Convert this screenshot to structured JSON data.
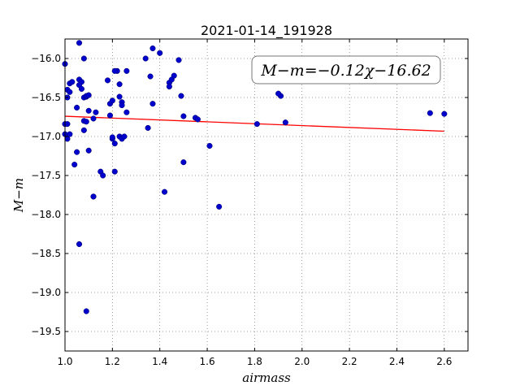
{
  "chart_data": {
    "type": "scatter",
    "title": "2021-01-14_191928",
    "xlabel": "airmass",
    "ylabel": "M−m",
    "annotation": "M−m=−0.12χ−16.62",
    "xlim": [
      1.0,
      2.7
    ],
    "ylim": [
      -19.75,
      -15.75
    ],
    "y_inverted": true,
    "grid": true,
    "x_ticks": [
      "1.0",
      "1.2",
      "1.4",
      "1.6",
      "1.8",
      "2.0",
      "2.2",
      "2.4",
      "2.6"
    ],
    "x_tick_values": [
      1.0,
      1.2,
      1.4,
      1.6,
      1.8,
      2.0,
      2.2,
      2.4,
      2.6
    ],
    "y_ticks": [
      "−16.0",
      "−16.5",
      "−17.0",
      "−17.5",
      "−18.0",
      "−18.5",
      "−19.0",
      "−19.5"
    ],
    "y_tick_values": [
      -16.0,
      -16.5,
      -17.0,
      -17.5,
      -18.0,
      -18.5,
      -19.0,
      -19.5
    ],
    "fit_line": {
      "slope": -0.12,
      "intercept": -16.62,
      "x_range": [
        1.0,
        2.6
      ],
      "color": "#ff0000"
    },
    "marker_color": "#0000cc",
    "series": [
      {
        "x": [
          1.0,
          1.01,
          1.02,
          1.01,
          1.0,
          1.01,
          1.0,
          1.01,
          1.02,
          1.02,
          1.03,
          1.04,
          1.05,
          1.05,
          1.06,
          1.06,
          1.07,
          1.06,
          1.07,
          1.08,
          1.08,
          1.09,
          1.09,
          1.1,
          1.1,
          1.08,
          1.08,
          1.09,
          1.1,
          1.12,
          1.13,
          1.12,
          1.15,
          1.16,
          1.18,
          1.19,
          1.2,
          1.19,
          1.2,
          1.21,
          1.22,
          1.23,
          1.23,
          1.24,
          1.24,
          1.26,
          1.26,
          1.2,
          1.21,
          1.23,
          1.24,
          1.25,
          1.21,
          1.12,
          1.06,
          1.09,
          1.34,
          1.37,
          1.4,
          1.36,
          1.37,
          1.44,
          1.45,
          1.44,
          1.46,
          1.48,
          1.49,
          1.5,
          1.5,
          1.42,
          1.55,
          1.56,
          1.61,
          1.65,
          1.81,
          1.91,
          1.9,
          1.93,
          2.54,
          2.6,
          1.35
        ],
        "y": [
          -16.07,
          -16.4,
          -16.43,
          -16.5,
          -16.84,
          -16.84,
          -16.97,
          -17.03,
          -16.97,
          -16.32,
          -16.3,
          -17.36,
          -16.63,
          -17.2,
          -15.8,
          -16.27,
          -16.3,
          -16.34,
          -16.39,
          -16.0,
          -16.5,
          -16.49,
          -16.48,
          -16.47,
          -16.67,
          -16.8,
          -16.92,
          -16.81,
          -17.18,
          -16.77,
          -16.69,
          -17.77,
          -17.45,
          -17.5,
          -16.28,
          -16.58,
          -16.54,
          -16.73,
          -17.03,
          -17.09,
          -16.16,
          -16.33,
          -16.49,
          -16.56,
          -16.6,
          -16.69,
          -16.16,
          -17.01,
          -17.45,
          -17.0,
          -17.03,
          -17.0,
          -16.16,
          -17.77,
          -18.38,
          -19.24,
          -16.0,
          -15.87,
          -15.93,
          -16.23,
          -16.58,
          -16.31,
          -16.27,
          -16.36,
          -16.22,
          -16.02,
          -16.48,
          -16.74,
          -17.33,
          -17.71,
          -16.76,
          -16.78,
          -17.12,
          -17.9,
          -16.84,
          -16.48,
          -16.45,
          -16.82,
          -16.7,
          -16.71,
          -16.89
        ]
      }
    ]
  }
}
